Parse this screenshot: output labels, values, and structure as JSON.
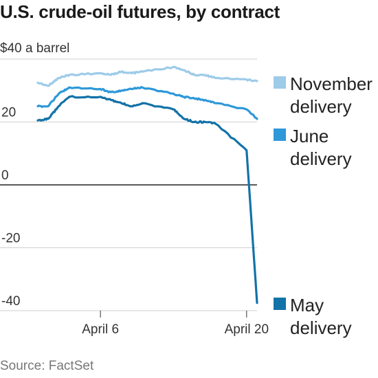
{
  "title": "U.S. crude-oil futures, by contract",
  "source": "Source: FactSet",
  "chart_data": {
    "type": "line",
    "title": "U.S. crude-oil futures, by contract",
    "ylabel": "$40 a barrel",
    "ylim": [
      -40,
      40
    ],
    "xlim": [
      "2020-03-31",
      "2020-04-21"
    ],
    "y_ticks": [
      {
        "value": 40,
        "label": "$40 a barrel"
      },
      {
        "value": 20,
        "label": "20"
      },
      {
        "value": 0,
        "label": "0"
      },
      {
        "value": -20,
        "label": "-20"
      },
      {
        "value": -40,
        "label": "-40"
      }
    ],
    "x_ticks": [
      {
        "value": "2020-04-06",
        "label": "April 6"
      },
      {
        "value": "2020-04-20",
        "label": "April 20"
      }
    ],
    "grid": true,
    "legend_position": "right",
    "series": [
      {
        "name": "November delivery",
        "legend": [
          "November",
          "delivery"
        ],
        "color": "#9dcbe9",
        "x": [
          "2020-03-31",
          "2020-04-01",
          "2020-04-02",
          "2020-04-03",
          "2020-04-06",
          "2020-04-07",
          "2020-04-08",
          "2020-04-09",
          "2020-04-10",
          "2020-04-13",
          "2020-04-14",
          "2020-04-15",
          "2020-04-16",
          "2020-04-17",
          "2020-04-20",
          "2020-04-21"
        ],
        "y": [
          32.5,
          31.5,
          34,
          35,
          35.5,
          35,
          36,
          35.5,
          36,
          37.5,
          36.5,
          35,
          35,
          34,
          33.5,
          33
        ]
      },
      {
        "name": "June delivery",
        "legend": [
          "June",
          "delivery"
        ],
        "color": "#2e98d8",
        "x": [
          "2020-03-31",
          "2020-04-01",
          "2020-04-02",
          "2020-04-03",
          "2020-04-06",
          "2020-04-07",
          "2020-04-08",
          "2020-04-09",
          "2020-04-10",
          "2020-04-13",
          "2020-04-14",
          "2020-04-15",
          "2020-04-16",
          "2020-04-17",
          "2020-04-20",
          "2020-04-21"
        ],
        "y": [
          25,
          25,
          29,
          31,
          30.5,
          29.5,
          30,
          30.5,
          31,
          29,
          28,
          27.5,
          27,
          26,
          24,
          21
        ]
      },
      {
        "name": "May delivery",
        "legend": [
          "May",
          "delivery"
        ],
        "color": "#1372a8",
        "x": [
          "2020-03-31",
          "2020-04-01",
          "2020-04-02",
          "2020-04-03",
          "2020-04-06",
          "2020-04-07",
          "2020-04-08",
          "2020-04-09",
          "2020-04-10",
          "2020-04-13",
          "2020-04-14",
          "2020-04-15",
          "2020-04-16",
          "2020-04-17",
          "2020-04-20",
          "2020-04-21"
        ],
        "y": [
          20.5,
          21,
          25,
          28,
          28,
          27,
          26,
          25,
          26,
          24,
          21,
          20,
          20,
          19.5,
          11,
          -37.5
        ]
      }
    ]
  }
}
